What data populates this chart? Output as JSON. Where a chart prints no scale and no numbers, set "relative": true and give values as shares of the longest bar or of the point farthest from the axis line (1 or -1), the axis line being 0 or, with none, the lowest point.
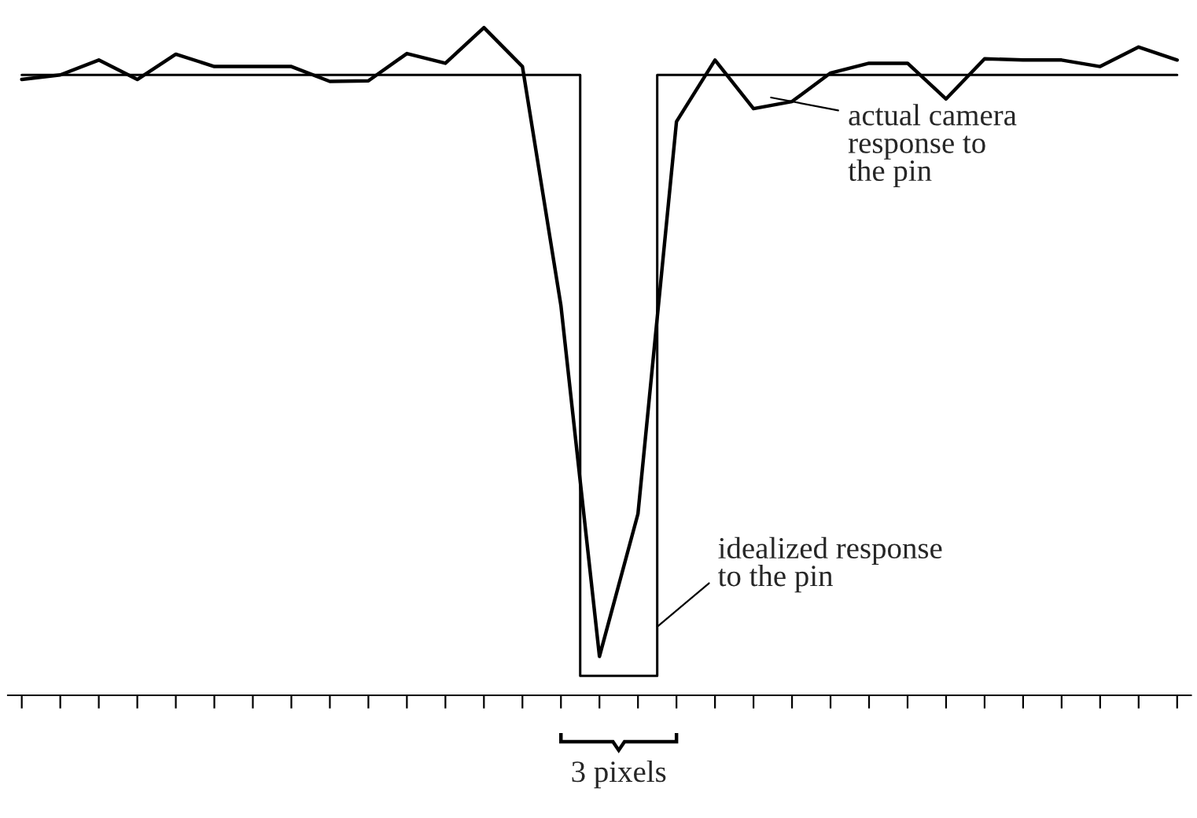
{
  "chart_data": {
    "type": "line",
    "relative": true,
    "categories": [
      null,
      null,
      null,
      null,
      null,
      null,
      null,
      null,
      null,
      null,
      null,
      null,
      null,
      null,
      null,
      null,
      null,
      null,
      null,
      null,
      null,
      null,
      null,
      null,
      null,
      null,
      null,
      null,
      null,
      null,
      null
    ],
    "grid": false,
    "legend": false,
    "series": [
      {
        "type": "step",
        "color": "#000000",
        "values": [
          0.927,
          0.927,
          0.927,
          0.927,
          0.927,
          0.927,
          0.927,
          0.927,
          0.927,
          0.927,
          0.927,
          0.927,
          0.927,
          0.927,
          0.927,
          0,
          0,
          0.927,
          0.927,
          0.927,
          0.927,
          0.927,
          0.927,
          0.927,
          0.927,
          0.927,
          0.927,
          0.927,
          0.927,
          0.927,
          0.927
        ]
      },
      {
        "color": "#000000",
        "values": [
          0.92,
          0.927,
          0.95,
          0.92,
          0.959,
          0.94,
          0.94,
          0.94,
          0.917,
          0.918,
          0.96,
          0.945,
          1.0,
          0.94,
          0.571,
          0.03,
          0.25,
          0.855,
          0.95,
          0.875,
          0.886,
          0.93,
          0.945,
          0.945,
          0.89,
          0.952,
          0.95,
          0.95,
          0.94,
          0.97,
          0.95
        ]
      }
    ],
    "annotations": [
      "actual camera\nresponse to\nthe pin",
      "idealized response\nto the pin",
      "3 pixels"
    ]
  }
}
